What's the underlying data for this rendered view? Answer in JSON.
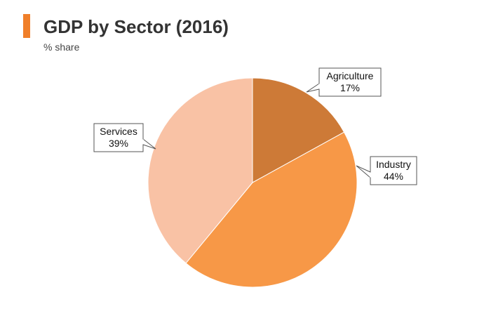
{
  "chart_data": {
    "type": "pie",
    "title": "GDP by Sector (2016)",
    "subtitle": "% share",
    "categories": [
      "Agriculture",
      "Industry",
      "Services"
    ],
    "values": [
      17,
      44,
      39
    ],
    "value_labels": [
      "17%",
      "44%",
      "39%"
    ],
    "colors": [
      "#cd7a37",
      "#f79847",
      "#f9c2a5"
    ],
    "legend": "none",
    "start_angle": "12 o'clock",
    "direction": "clockwise"
  },
  "colors": {
    "title_accent": "#f07f29"
  }
}
